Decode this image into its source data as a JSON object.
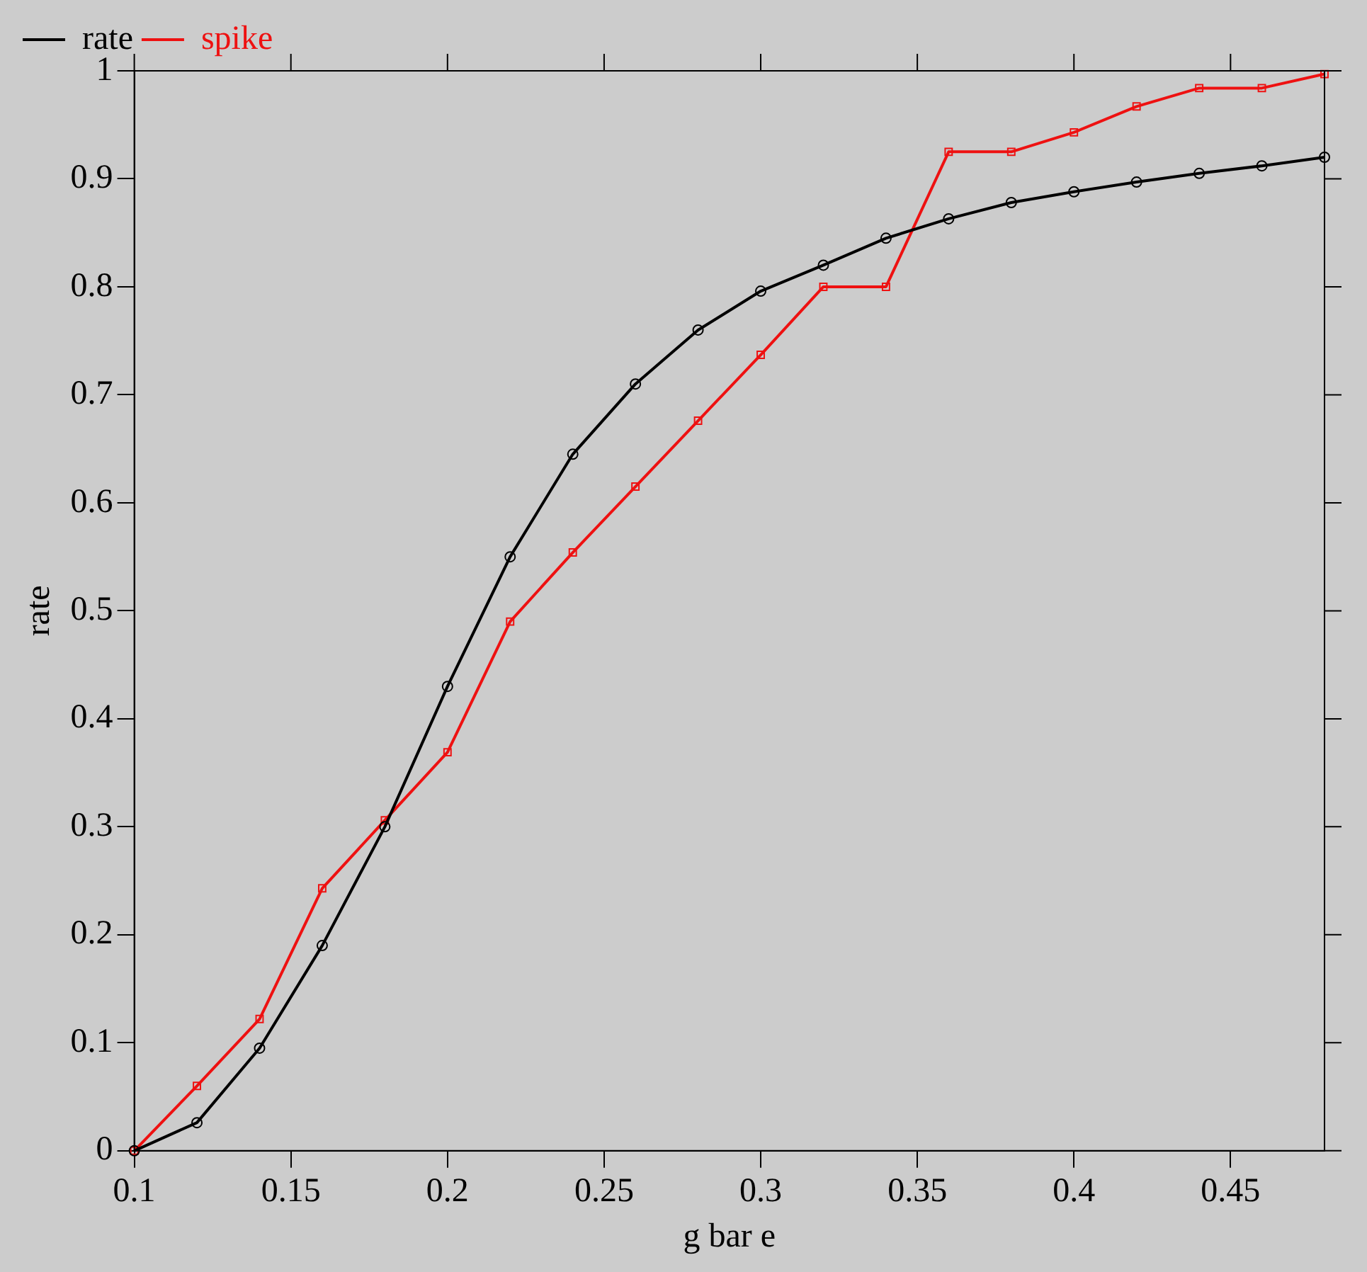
{
  "chart_data": {
    "type": "line",
    "xlabel": "g bar e",
    "ylabel": "rate",
    "x": [
      0.1,
      0.12,
      0.14,
      0.16,
      0.18,
      0.2,
      0.22,
      0.24,
      0.26,
      0.28,
      0.3,
      0.32,
      0.34,
      0.36,
      0.38,
      0.4,
      0.42,
      0.44,
      0.46,
      0.48
    ],
    "series": [
      {
        "name": "rate",
        "color": "#000000",
        "marker": "circle",
        "values": [
          0,
          0.026,
          0.095,
          0.19,
          0.3,
          0.43,
          0.55,
          0.645,
          0.71,
          0.76,
          0.796,
          0.82,
          0.845,
          0.863,
          0.878,
          0.888,
          0.897,
          0.905,
          0.912,
          0.92
        ]
      },
      {
        "name": "spike",
        "color": "#ee1111",
        "marker": "square",
        "values": [
          0,
          0.06,
          0.122,
          0.243,
          0.306,
          0.369,
          0.49,
          0.554,
          0.615,
          0.676,
          0.737,
          0.8,
          0.8,
          0.925,
          0.925,
          0.943,
          0.967,
          0.984,
          0.984,
          0.997
        ]
      }
    ],
    "xlim": [
      0.1,
      0.48
    ],
    "xticks": [
      0.1,
      0.15,
      0.2,
      0.25,
      0.3,
      0.35,
      0.4,
      0.45
    ],
    "ylim": [
      0,
      1
    ],
    "yticks": [
      0,
      0.1,
      0.2,
      0.3,
      0.4,
      0.5,
      0.6,
      0.7,
      0.8,
      0.9,
      1
    ],
    "grid": false,
    "legend": "top left",
    "line_style": "solid"
  }
}
